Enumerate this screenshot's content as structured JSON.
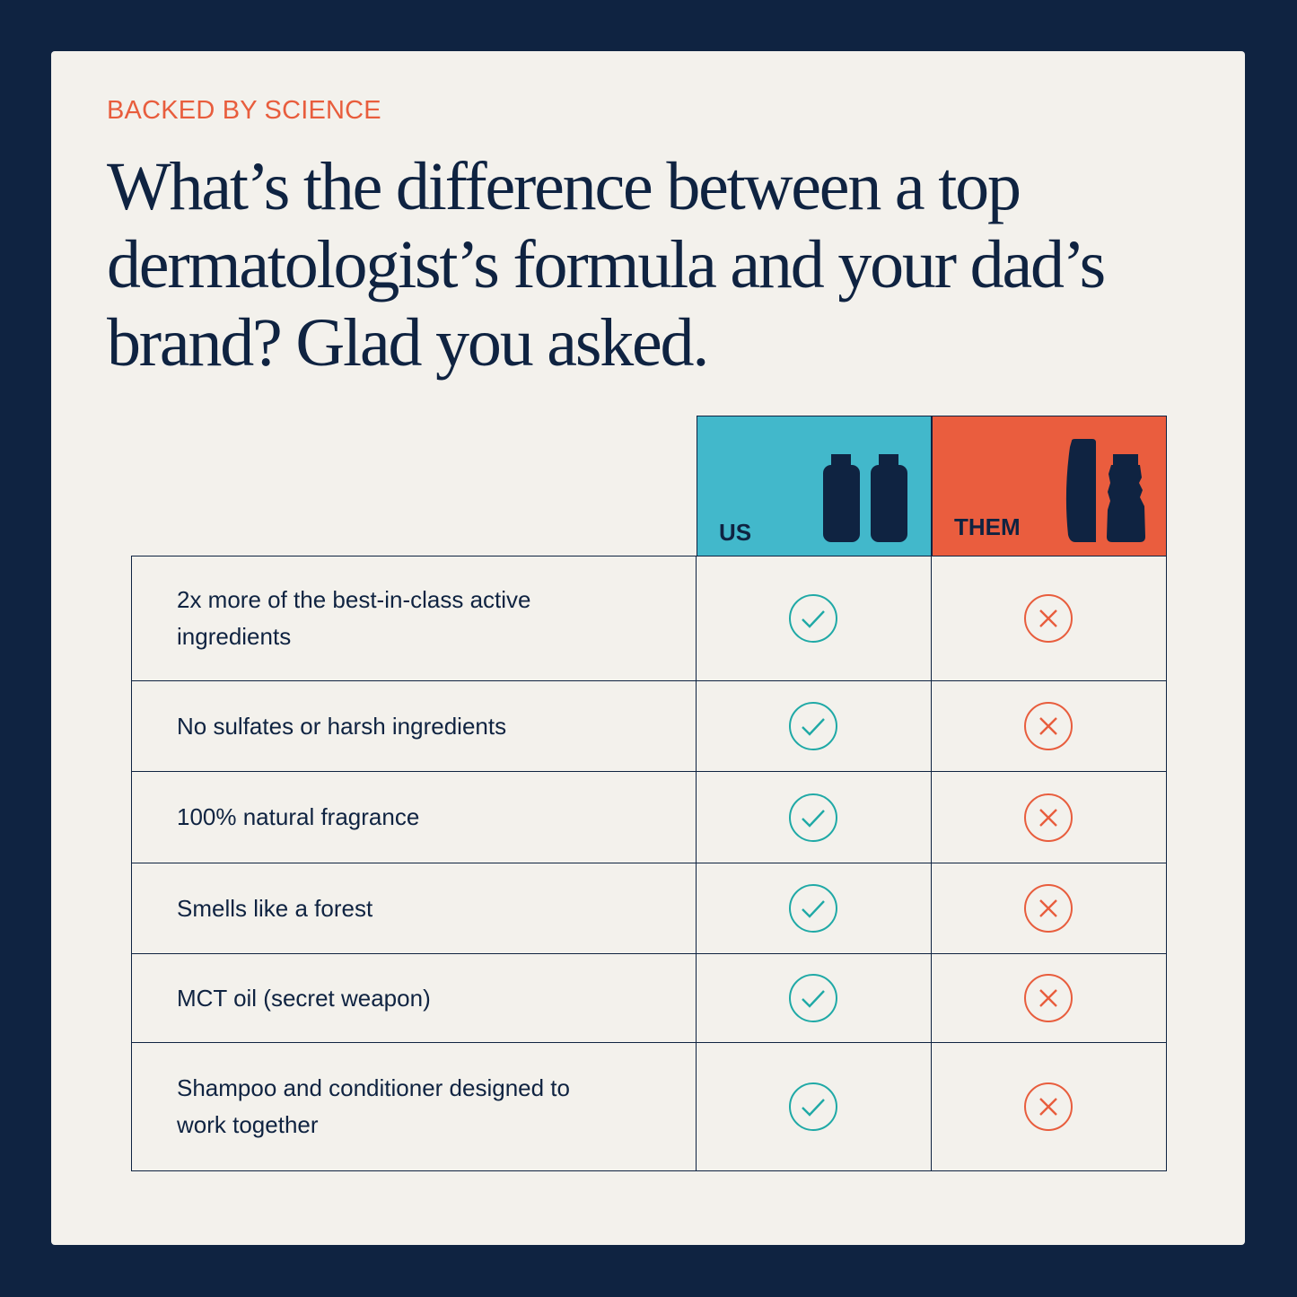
{
  "eyebrow": "BACKED BY SCIENCE",
  "title": "What’s the difference between a top dermatologist’s formula and your dad’s brand? Glad you asked.",
  "columns": {
    "us": "US",
    "them": "THEM"
  },
  "colors": {
    "background": "#0f2341",
    "card": "#f3f1ec",
    "accent": "#e85d3d",
    "us": "#42b8cb",
    "them": "#ea5d3e",
    "check": "#1fa9a6"
  },
  "rows": [
    {
      "feature": "2x more of the best-in-class active ingredients",
      "us": "check-icon",
      "them": "x-icon"
    },
    {
      "feature": "No sulfates or harsh ingredients",
      "us": "check-icon",
      "them": "x-icon"
    },
    {
      "feature": "100% natural fragrance",
      "us": "check-icon",
      "them": "x-icon"
    },
    {
      "feature": "Smells like a forest",
      "us": "check-icon",
      "them": "x-icon"
    },
    {
      "feature": "MCT oil (secret weapon)",
      "us": "check-icon",
      "them": "x-icon"
    },
    {
      "feature": "Shampoo and conditioner designed to work together",
      "us": "check-icon",
      "them": "x-icon"
    }
  ]
}
